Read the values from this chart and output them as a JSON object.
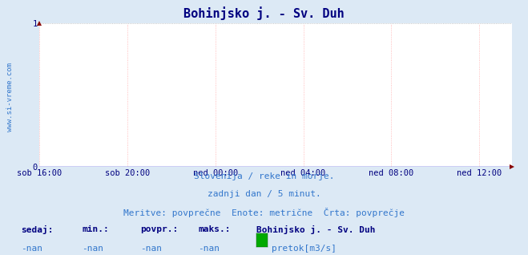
{
  "title": "Bohinjsko j. - Sv. Duh",
  "title_color": "#000080",
  "title_fontsize": 11,
  "bg_color": "#dce9f5",
  "plot_bg_color": "#ffffff",
  "x_labels": [
    "sob 16:00",
    "sob 20:00",
    "ned 00:00",
    "ned 04:00",
    "ned 08:00",
    "ned 12:00"
  ],
  "x_ticks_pos": [
    0,
    4,
    8,
    12,
    16,
    20
  ],
  "x_max": 21.5,
  "ylim": [
    0,
    1
  ],
  "y_ticks": [
    0,
    1
  ],
  "grid_color_h": "#b8b8b8",
  "grid_color_v": "#ffaaaa",
  "tick_color": "#000080",
  "tick_fontsize": 7.5,
  "watermark": "www.si-vreme.com",
  "watermark_color": "#3377cc",
  "subtitle1": "Slovenija / reke in morje.",
  "subtitle2": "zadnji dan / 5 minut.",
  "subtitle3": "Meritve: povprečne  Enote: metrične  Črta: povprečje",
  "subtitle_color": "#3377cc",
  "subtitle_fontsize": 8,
  "legend_label1": "sedaj:",
  "legend_label2": "min.:",
  "legend_label3": "povpr.:",
  "legend_label4": "maks.:",
  "legend_station": "Bohinjsko j. - Sv. Duh",
  "legend_val1": "-nan",
  "legend_val2": "-nan",
  "legend_val3": "-nan",
  "legend_val4": "-nan",
  "legend_series": "pretok[m3/s]",
  "legend_color": "#00aa00",
  "legend_text_color": "#3377cc",
  "legend_bold_color": "#000080",
  "line_color": "#0000cc",
  "arrow_color": "#880000"
}
